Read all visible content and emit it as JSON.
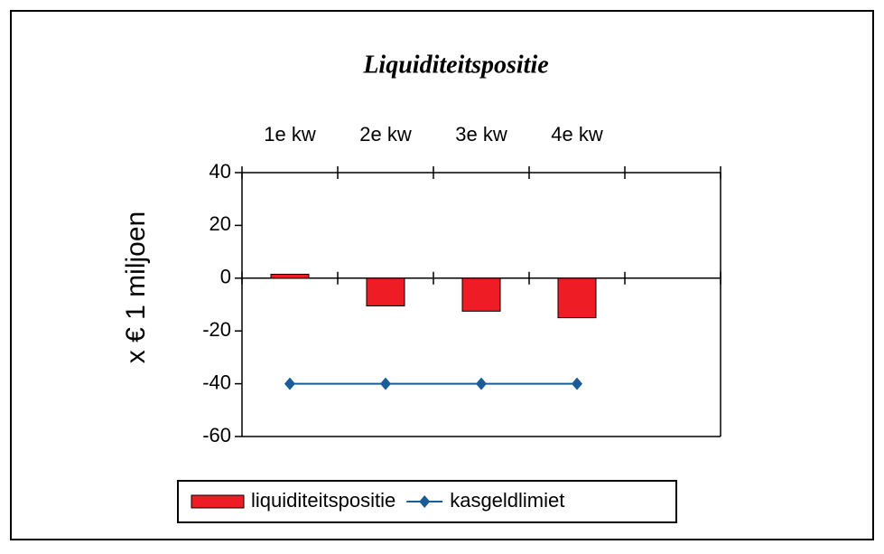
{
  "chart_data": {
    "type": "bar",
    "title": "Liquiditeitspositie",
    "y_label": "x € 1 miljoen",
    "categories": [
      "1e kw",
      "2e kw",
      "3e kw",
      "4e kw",
      null
    ],
    "series": [
      {
        "name": "liquiditeitspositie",
        "type": "bar",
        "color": "#ee1c24",
        "values": [
          1.5,
          -10.5,
          -12.5,
          -15,
          null
        ]
      },
      {
        "name": "kasgeldlimiet",
        "type": "line",
        "color": "#1a5c96",
        "values": [
          -40,
          -40,
          -40,
          -40,
          null
        ]
      }
    ],
    "ylim": [
      -60,
      40
    ],
    "yticks": [
      -60,
      -40,
      -20,
      0,
      20,
      40
    ],
    "legend": "bottom"
  }
}
